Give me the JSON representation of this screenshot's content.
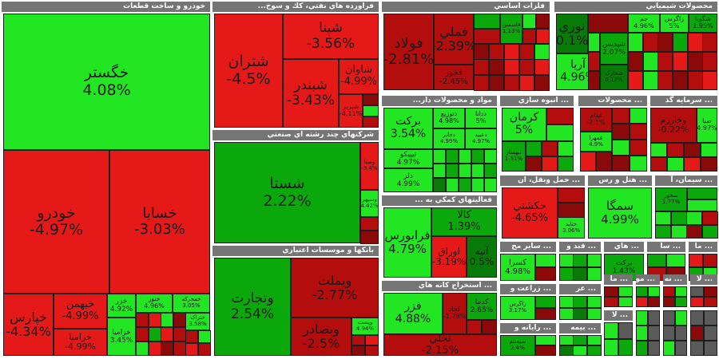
{
  "chart_data": {
    "type": "treemap",
    "color_scale": {
      "positive": "#22e622",
      "mid_positive": "#0aa80a",
      "dark_positive": "#087a08",
      "negative": "#e61919",
      "mid_negative": "#b40d0d",
      "dark_negative": "#8a0a0a"
    },
    "sectors": [
      {
        "name": "خودرو و ساخت قطعات",
        "tiles": [
          {
            "symbol": "خگستر",
            "change": "4.08%"
          },
          {
            "symbol": "خودرو",
            "change": "-4.97%"
          },
          {
            "symbol": "خسایا",
            "change": "-3.03%"
          },
          {
            "symbol": "خپارس",
            "change": "-4.34%"
          },
          {
            "symbol": "خبهمن",
            "change": "-4.99%"
          },
          {
            "symbol": "خرامیا",
            "change": "-4.99%"
          },
          {
            "symbol": "خزر",
            "change": "4.92%"
          },
          {
            "symbol": "ختور",
            "change": "4.96%"
          },
          {
            "symbol": "خزامیا",
            "change": "3.45%"
          },
          {
            "symbol": "خمحرکه",
            "change": "3.05%"
          },
          {
            "symbol": "ختراک",
            "change": "3.58%"
          }
        ]
      },
      {
        "name": "فراورده هاي نفتي، كك و سوخ...",
        "tiles": [
          {
            "symbol": "شتران",
            "change": "-4.5%"
          },
          {
            "symbol": "شپنا",
            "change": "-3.56%"
          },
          {
            "symbol": "شبندر",
            "change": "-3.43%"
          },
          {
            "symbol": "شاوان",
            "change": "-4.99%"
          },
          {
            "symbol": "شبریز",
            "change": "-4.11%"
          }
        ]
      },
      {
        "name": "فلزات اساسي",
        "tiles": [
          {
            "symbol": "فولاد",
            "change": "-2.81%"
          },
          {
            "symbol": "فملي",
            "change": "-2.39%"
          },
          {
            "symbol": "فخوز",
            "change": "-2.45%"
          },
          {
            "symbol": "فاسمین",
            "change": "1.13%"
          }
        ]
      },
      {
        "name": "محصولات شيميايي",
        "tiles": [
          {
            "symbol": "نوري",
            "change": "0.1%"
          },
          {
            "symbol": "آريا",
            "change": "4.96%"
          },
          {
            "symbol": "جم",
            "change": "4.96%"
          },
          {
            "symbol": "زاگرس",
            "change": "5%"
          },
          {
            "symbol": "شگویا",
            "change": "1.95%"
          },
          {
            "symbol": "شپدیس",
            "change": "2.07%"
          },
          {
            "symbol": "شخارک",
            "change": "0.12%"
          }
        ]
      },
      {
        "name": "شركتهاي چند رشته اي صنعتي",
        "tiles": [
          {
            "symbol": "شستا",
            "change": "2.22%"
          },
          {
            "symbol": "وصنا",
            "change": "-3.4%"
          },
          {
            "symbol": "وسپهر",
            "change": "4.42%"
          }
        ]
      },
      {
        "name": "بانكها و موسسات اعتباري",
        "tiles": [
          {
            "symbol": "وتجارت",
            "change": "2.54%"
          },
          {
            "symbol": "وبملت",
            "change": "-2.77%"
          },
          {
            "symbol": "وبصادر",
            "change": "-2.5%"
          },
          {
            "symbol": "وپست",
            "change": "4.94%"
          }
        ]
      },
      {
        "name": "مواد و محصولات دار...",
        "tiles": [
          {
            "symbol": "بركت",
            "change": "3.54%"
          },
          {
            "symbol": "تيپيكو",
            "change": "4.97%"
          },
          {
            "symbol": "دلر",
            "change": "4.99%"
          },
          {
            "symbol": "دتوزیع",
            "change": "4.98%"
          },
          {
            "symbol": "ددانا",
            "change": "5%"
          },
          {
            "symbol": "دجابر",
            "change": "4.99%"
          },
          {
            "symbol": "دعبید",
            "change": "4.97%"
          }
        ]
      },
      {
        "name": "فعاليتهاي كمكي به ...",
        "tiles": [
          {
            "symbol": "فرابورس",
            "change": "4.79%"
          },
          {
            "symbol": "كالا",
            "change": "1.39%"
          },
          {
            "symbol": "اوراق",
            "change": "-3.19%"
          },
          {
            "symbol": "آتیه",
            "change": "0.5%"
          }
        ]
      },
      {
        "name": "... استخراج كانه هاي",
        "tiles": [
          {
            "symbol": "فزر",
            "change": "4.88%"
          },
          {
            "symbol": "كدما",
            "change": "2.65%"
          },
          {
            "symbol": "كچاد",
            "change": "-1.78%"
          },
          {
            "symbol": "تخلي",
            "change": "-2.15%"
          }
        ]
      },
      {
        "name": "... انبوه سازي",
        "tiles": [
          {
            "symbol": "كرمان",
            "change": "5%"
          },
          {
            "symbol": "ثبهساز",
            "change": "1.51%"
          }
        ]
      },
      {
        "name": "... محصولات",
        "tiles": [
          {
            "symbol": "غدام",
            "change": "-2.1%"
          },
          {
            "symbol": "غمهرا",
            "change": "4.9%"
          }
        ]
      },
      {
        "name": "... سرمايه گذ",
        "tiles": [
          {
            "symbol": "صبا",
            "change": "4.97%"
          },
          {
            "symbol": "وخارزم",
            "change": "-0.22%"
          }
        ]
      },
      {
        "name": "... حمل ونقل، ان",
        "tiles": [
          {
            "symbol": "حكشتي",
            "change": "-4.65%"
          },
          {
            "symbol": "حتاید",
            "change": "3.06%"
          }
        ]
      },
      {
        "name": "... هتل و رس",
        "tiles": [
          {
            "symbol": "سمگا",
            "change": "4.99%"
          }
        ]
      },
      {
        "name": "... سيمان، آ",
        "tiles": [
          {
            "symbol": "سخوز",
            "change": "1.77%"
          }
        ]
      },
      {
        "name": "... ساير مح",
        "tiles": [
          {
            "symbol": "كسرا",
            "change": "4.98%"
          }
        ]
      },
      {
        "name": "... زراعت و",
        "tiles": [
          {
            "symbol": "زاگرس",
            "change": "3.17%"
          }
        ]
      },
      {
        "name": "... رايانه و",
        "tiles": [
          {
            "symbol": "سیستم",
            "change": "2.4%"
          }
        ]
      },
      {
        "name": "... قند و",
        "tiles": []
      },
      {
        "name": "... هاي",
        "tiles": [
          {
            "symbol": "برکت",
            "change": "1.43%"
          }
        ]
      },
      {
        "name": "... بيمه",
        "tiles": []
      },
      {
        "name": "... عر",
        "tiles": []
      }
    ]
  },
  "headers": [
    "خودرو و ساخت قطعات",
    "فراورده هاي نفتي، كك و سوخ...",
    "فلزات اساسي",
    "محصولات شيميايي",
    "شركتهاي چند رشته اي صنعتي",
    "بانكها و موسسات اعتباري",
    "مواد و محصولات دار...",
    "فعاليتهاي كمكي به ...",
    "... استخراج كانه هاي",
    "... انبوه سازي",
    "... محصولات",
    "... سرمايه گذ",
    "... حمل ونقل، ان",
    "... هتل و رس",
    "... سيمان، آ",
    "... ساير مح",
    "... قند و",
    "... هاي",
    "... زراعت و",
    "... عر",
    "... رايانه و",
    "... بيمه",
    "... سا",
    "... ما",
    "... ما",
    "... مو",
    "... نه",
    "... لا",
    "... كا"
  ]
}
